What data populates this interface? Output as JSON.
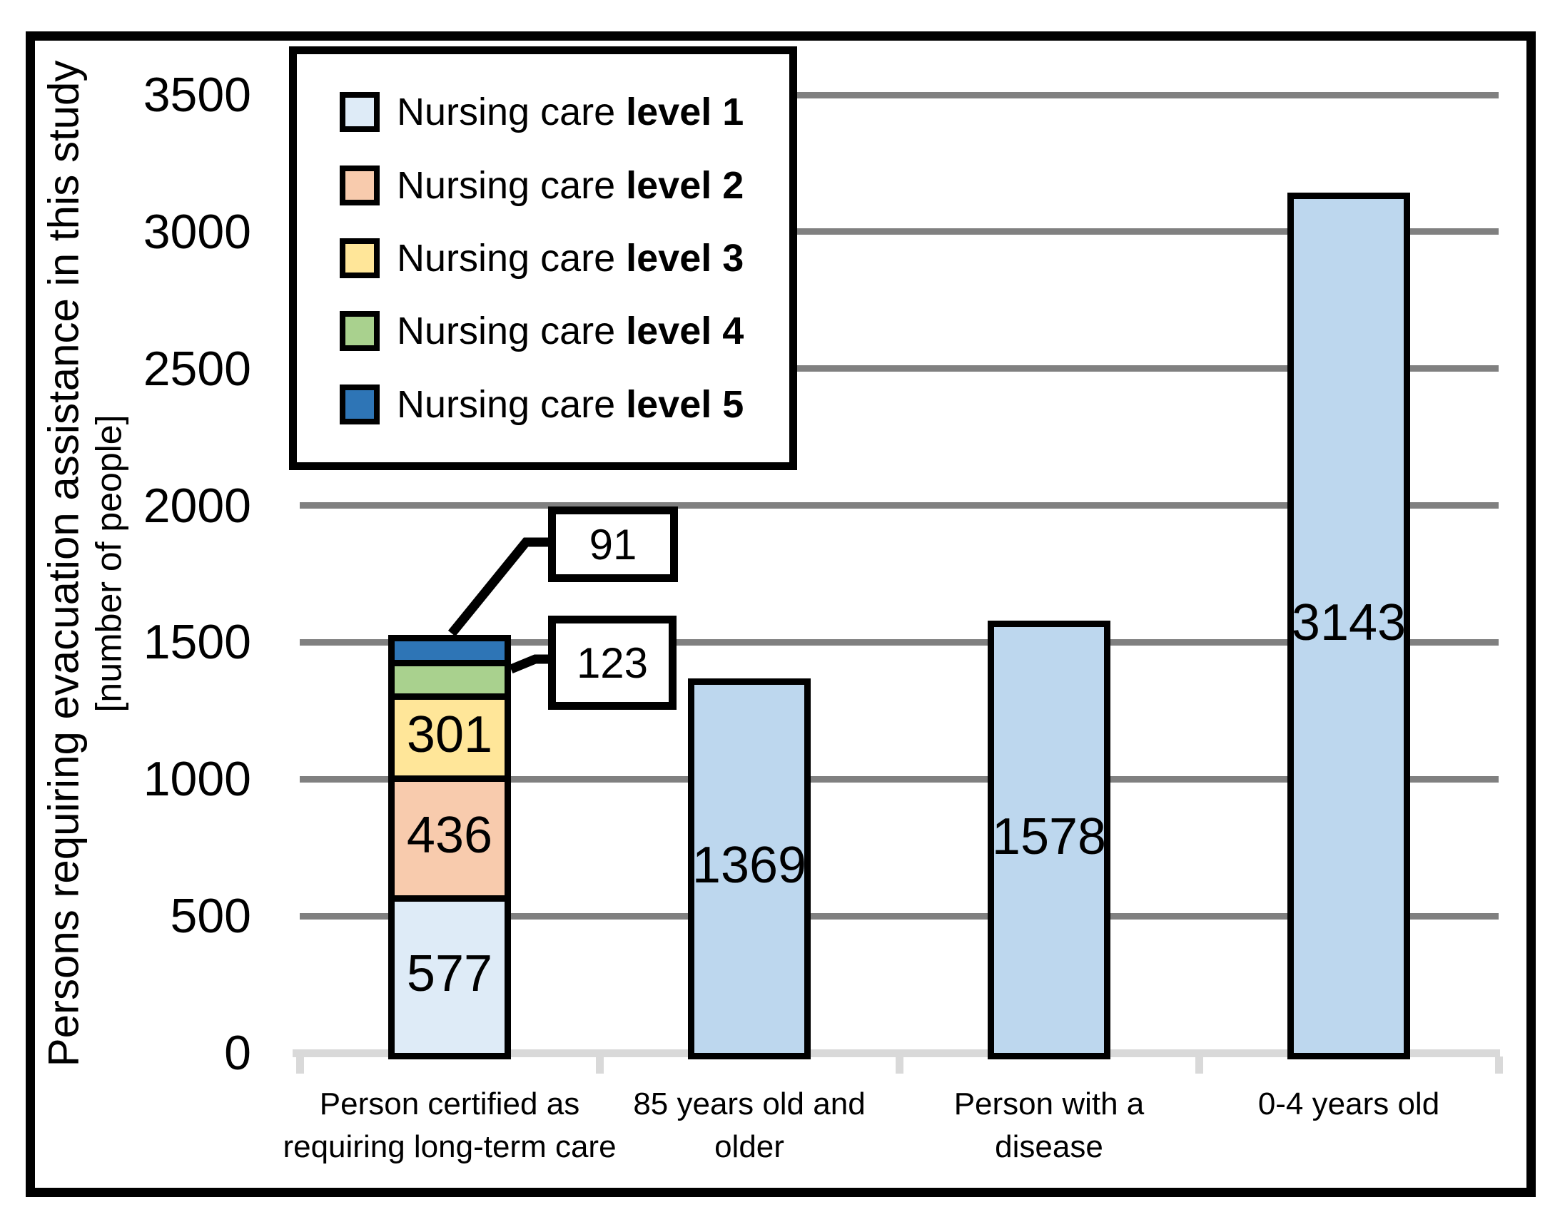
{
  "figure": {
    "background": "#FFFFFF",
    "border_color": "#000000",
    "gridline_color": "#808080",
    "baseline_color": "#D9D9D9"
  },
  "y_axis": {
    "title": "Persons requiring evacuation assistance in this study",
    "title_sub": "[number of people]",
    "ticks": [
      3500,
      3000,
      2500,
      2000,
      1500,
      1000,
      500,
      0
    ]
  },
  "legend": {
    "items": [
      {
        "prefix": "Nursing care",
        "bold": "level 1",
        "color": "#DEEBF7"
      },
      {
        "prefix": "Nursing care",
        "bold": "level 2",
        "color": "#F8CBAD"
      },
      {
        "prefix": "Nursing care",
        "bold": "level 3",
        "color": "#FFE699"
      },
      {
        "prefix": "Nursing care",
        "bold": "level 4",
        "color": "#A9D18E"
      },
      {
        "prefix": "Nursing care",
        "bold": "level 5",
        "color": "#2E75B6"
      }
    ]
  },
  "chart_data": {
    "type": "bar",
    "subtype": "stacked-column",
    "title": "",
    "ylabel": "Persons requiring evacuation assistance in this study [number of people]",
    "ylim": [
      0,
      3500
    ],
    "ytick_step": 500,
    "yticks": [
      3500,
      3000,
      2500,
      2000,
      1500,
      1000,
      500,
      0
    ],
    "grid": true,
    "legend_position": "top-left",
    "categories": [
      "Person certified as requiring long-term care",
      "85 years old and older",
      "Person with a disease",
      "0-4 years old"
    ],
    "category_label_lines": [
      [
        "Person certified as",
        "requiring long-term care"
      ],
      [
        "85 years old and",
        "older"
      ],
      [
        "Person with a",
        "disease"
      ],
      [
        "0-4 years old"
      ]
    ],
    "bars": [
      {
        "category": "Person certified as requiring long-term care",
        "segments": [
          {
            "name": "Nursing care level 1",
            "value": 577,
            "color": "#DEEBF7",
            "label": "577"
          },
          {
            "name": "Nursing care level 2",
            "value": 436,
            "color": "#F8CBAD",
            "label": "436"
          },
          {
            "name": "Nursing care level 3",
            "value": 301,
            "color": "#FFE699",
            "label": "301"
          },
          {
            "name": "Nursing care level 4",
            "value": 123,
            "color": "#A9D18E",
            "label": ""
          },
          {
            "name": "Nursing care level 5",
            "value": 91,
            "color": "#2E75B6",
            "label": ""
          }
        ]
      },
      {
        "category": "85 years old and older",
        "segments": [
          {
            "name": "85 years old and older",
            "value": 1369,
            "color": "#BDD7EE",
            "label": "1369"
          }
        ]
      },
      {
        "category": "Person with a disease",
        "segments": [
          {
            "name": "Person with a disease",
            "value": 1578,
            "color": "#BDD7EE",
            "label": "1578"
          }
        ]
      },
      {
        "category": "0-4 years old",
        "segments": [
          {
            "name": "0-4 years old",
            "value": 3143,
            "color": "#BDD7EE",
            "label": "3143"
          }
        ]
      }
    ],
    "callouts": {
      "level5_label": "91",
      "level4_label": "123"
    }
  }
}
